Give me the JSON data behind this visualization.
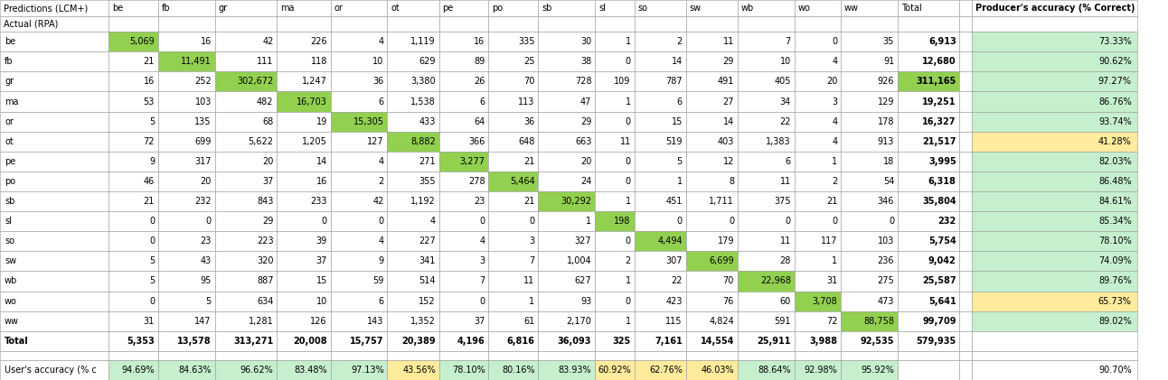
{
  "row_labels": [
    "be",
    "fb",
    "gr",
    "ma",
    "or",
    "ot",
    "pe",
    "po",
    "sb",
    "sl",
    "so",
    "sw",
    "wb",
    "wo",
    "ww",
    "Total"
  ],
  "col_labels": [
    "be",
    "fb",
    "gr",
    "ma",
    "or",
    "ot",
    "pe",
    "po",
    "sb",
    "sl",
    "so",
    "sw",
    "wb",
    "wo",
    "ww",
    "Total"
  ],
  "data": [
    [
      5069,
      16,
      42,
      226,
      4,
      1119,
      16,
      335,
      30,
      1,
      2,
      11,
      7,
      0,
      35,
      6913
    ],
    [
      21,
      11491,
      111,
      118,
      10,
      629,
      89,
      25,
      38,
      0,
      14,
      29,
      10,
      4,
      91,
      12680
    ],
    [
      16,
      252,
      302672,
      1247,
      36,
      3380,
      26,
      70,
      728,
      109,
      787,
      491,
      405,
      20,
      926,
      311165
    ],
    [
      53,
      103,
      482,
      16703,
      6,
      1538,
      6,
      113,
      47,
      1,
      6,
      27,
      34,
      3,
      129,
      19251
    ],
    [
      5,
      135,
      68,
      19,
      15305,
      433,
      64,
      36,
      29,
      0,
      15,
      14,
      22,
      4,
      178,
      16327
    ],
    [
      72,
      699,
      5622,
      1205,
      127,
      8882,
      366,
      648,
      663,
      11,
      519,
      403,
      1383,
      4,
      913,
      21517
    ],
    [
      9,
      317,
      20,
      14,
      4,
      271,
      3277,
      21,
      20,
      0,
      5,
      12,
      6,
      1,
      18,
      3995
    ],
    [
      46,
      20,
      37,
      16,
      2,
      355,
      278,
      5464,
      24,
      0,
      1,
      8,
      11,
      2,
      54,
      6318
    ],
    [
      21,
      232,
      843,
      233,
      42,
      1192,
      23,
      21,
      30292,
      1,
      451,
      1711,
      375,
      21,
      346,
      35804
    ],
    [
      0,
      0,
      29,
      0,
      0,
      4,
      0,
      0,
      1,
      198,
      0,
      0,
      0,
      0,
      0,
      232
    ],
    [
      0,
      23,
      223,
      39,
      4,
      227,
      4,
      3,
      327,
      0,
      4494,
      179,
      11,
      117,
      103,
      5754
    ],
    [
      5,
      43,
      320,
      37,
      9,
      341,
      3,
      7,
      1004,
      2,
      307,
      6699,
      28,
      1,
      236,
      9042
    ],
    [
      5,
      95,
      887,
      15,
      59,
      514,
      7,
      11,
      627,
      1,
      22,
      70,
      22968,
      31,
      275,
      25587
    ],
    [
      0,
      5,
      634,
      10,
      6,
      152,
      0,
      1,
      93,
      0,
      423,
      76,
      60,
      3708,
      473,
      5641
    ],
    [
      31,
      147,
      1281,
      126,
      143,
      1352,
      37,
      61,
      2170,
      1,
      115,
      4824,
      591,
      72,
      88758,
      99709
    ],
    [
      5353,
      13578,
      313271,
      20008,
      15757,
      20389,
      4196,
      6816,
      36093,
      325,
      7161,
      14554,
      25911,
      3988,
      92535,
      579935
    ]
  ],
  "producer_accuracy": [
    "73.33%",
    "90.62%",
    "97.27%",
    "86.76%",
    "93.74%",
    "41.28%",
    "82.03%",
    "86.48%",
    "84.61%",
    "85.34%",
    "78.10%",
    "74.09%",
    "89.76%",
    "65.73%",
    "89.02%",
    ""
  ],
  "user_accuracy": [
    "94.69%",
    "84.63%",
    "96.62%",
    "83.48%",
    "97.13%",
    "43.56%",
    "78.10%",
    "80.16%",
    "83.93%",
    "60.92%",
    "62.76%",
    "46.03%",
    "88.64%",
    "92.98%",
    "95.92%",
    ""
  ],
  "overall_accuracy": "90.70%",
  "green_bg": "#92d050",
  "light_green_bg": "#c6efce",
  "yellow_bg": "#ffeb9c",
  "white": "#ffffff"
}
